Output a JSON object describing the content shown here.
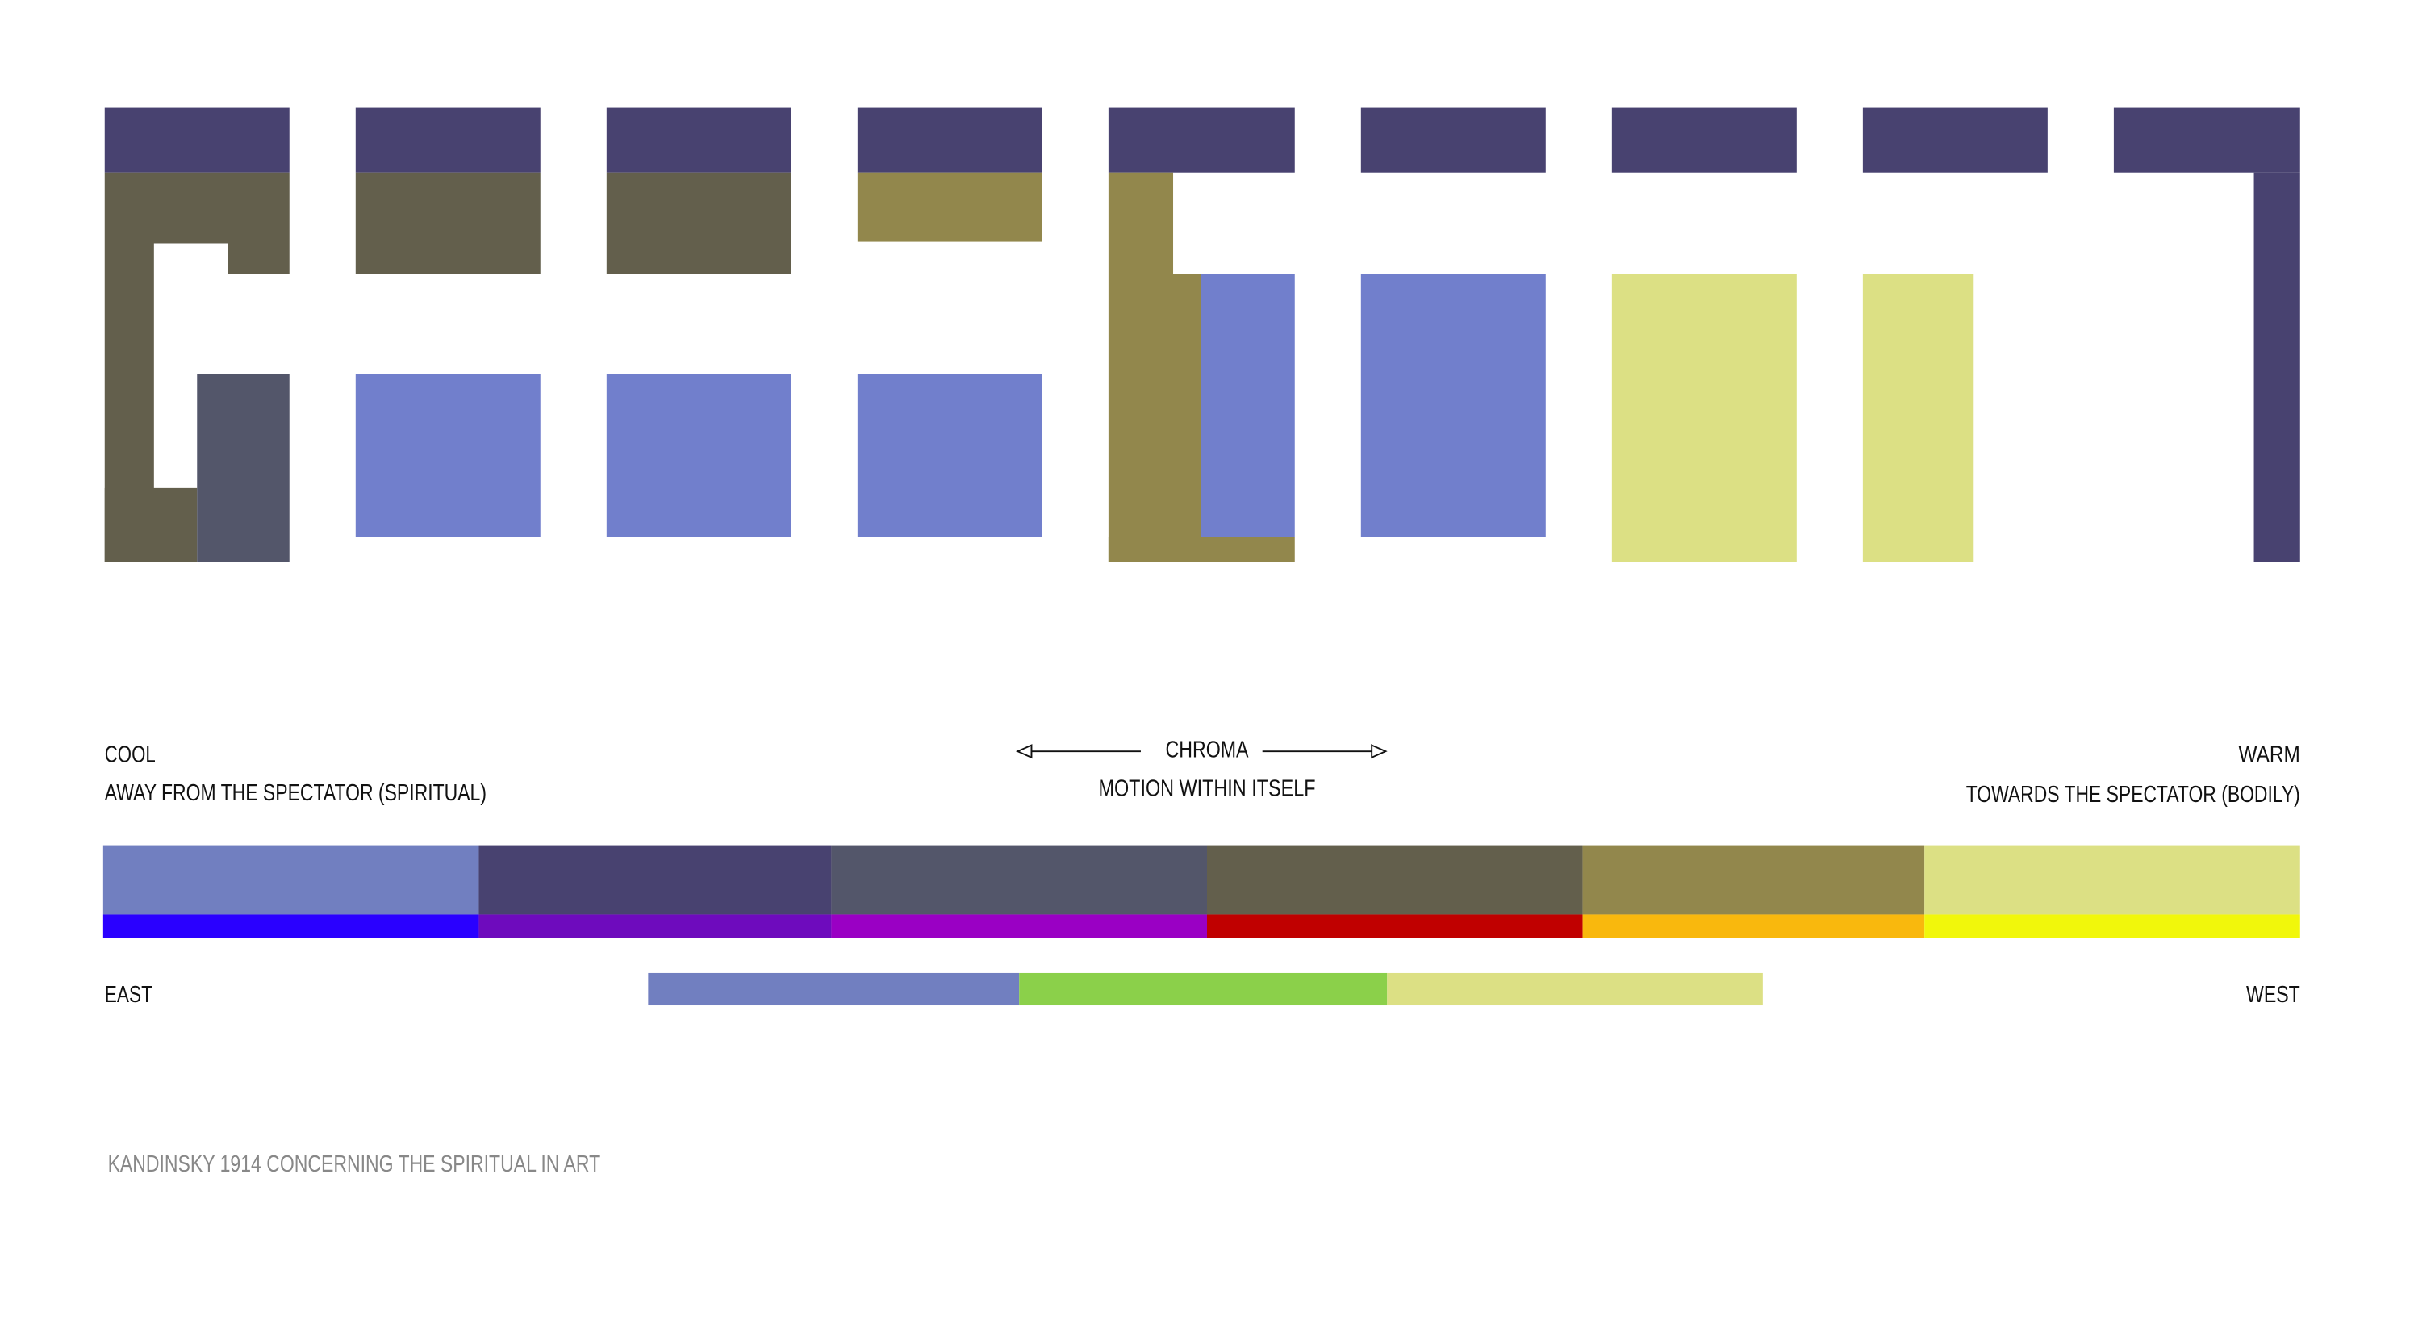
{
  "labels": {
    "cool": "COOL",
    "cool_desc": "AWAY FROM THE SPECTATOR (SPIRITUAL)",
    "chroma": "CHROMA",
    "chroma_desc": "MOTION WITHIN ITSELF",
    "warm": "WARM",
    "warm_desc": "TOWARDS THE SPECTATOR (BODILY)",
    "east": "EAST",
    "west": "WEST"
  },
  "caption": "KANDINSKY 1914 CONCERNING THE SPIRITUAL IN ART"
}
